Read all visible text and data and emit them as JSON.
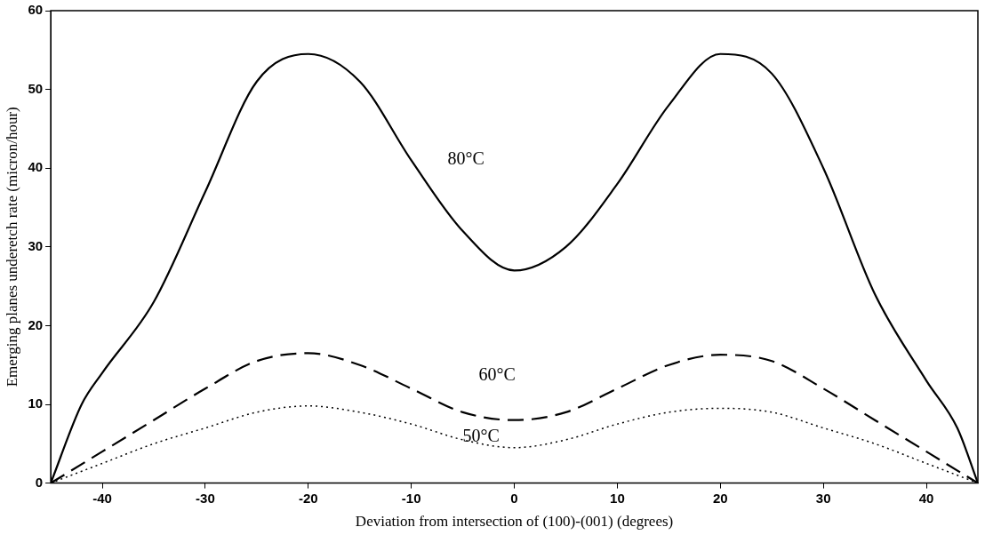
{
  "chart_data": {
    "type": "line",
    "xlabel": "Deviation from intersection of (100)-(001) (degrees)",
    "ylabel": "Emerging planes underetch rate (micron/hour)",
    "xlim": [
      -45,
      45
    ],
    "xticks": [
      -40,
      -30,
      -20,
      -10,
      0,
      10,
      20,
      30,
      40
    ],
    "ylim": [
      0,
      60
    ],
    "yticks": [
      0,
      10,
      20,
      30,
      40,
      50,
      60
    ],
    "grid": false,
    "legend": false,
    "marker": "none",
    "series": [
      {
        "name": "80°C",
        "color": "#000000",
        "line_style": "solid",
        "x": [
          -45,
          -42,
          -40,
          -35,
          -30,
          -25,
          -20,
          -15,
          -10,
          -5,
          0,
          5,
          10,
          15,
          20,
          25,
          30,
          35,
          40,
          43,
          45
        ],
        "values": [
          0,
          10,
          14,
          23,
          37,
          51,
          54.5,
          51,
          41,
          32,
          27,
          30,
          38,
          48,
          54.5,
          52,
          40,
          24,
          13,
          7,
          0
        ]
      },
      {
        "name": "60°C",
        "color": "#000000",
        "line_style": "dashed",
        "x": [
          -45,
          -40,
          -35,
          -30,
          -25,
          -20,
          -15,
          -10,
          -5,
          0,
          5,
          10,
          15,
          20,
          25,
          30,
          35,
          40,
          45
        ],
        "values": [
          0,
          4,
          8,
          12,
          15.5,
          16.5,
          15,
          12,
          9,
          8,
          9,
          12,
          15,
          16.3,
          15.5,
          12,
          8,
          4,
          0
        ]
      },
      {
        "name": "50°C",
        "color": "#000000",
        "line_style": "dotted",
        "x": [
          -45,
          -40,
          -35,
          -30,
          -25,
          -20,
          -15,
          -10,
          -5,
          0,
          5,
          10,
          15,
          20,
          25,
          30,
          35,
          40,
          45
        ],
        "values": [
          0,
          2.5,
          5,
          7,
          9,
          9.8,
          9,
          7.5,
          5.5,
          4.5,
          5.5,
          7.5,
          9,
          9.5,
          9,
          7,
          5,
          2.5,
          0
        ]
      }
    ]
  }
}
